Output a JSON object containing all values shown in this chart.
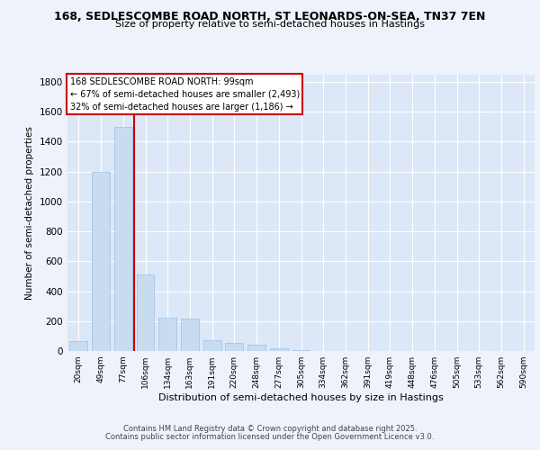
{
  "title1": "168, SEDLESCOMBE ROAD NORTH, ST LEONARDS-ON-SEA, TN37 7EN",
  "title2": "Size of property relative to semi-detached houses in Hastings",
  "xlabel": "Distribution of semi-detached houses by size in Hastings",
  "ylabel": "Number of semi-detached properties",
  "categories": [
    "20sqm",
    "49sqm",
    "77sqm",
    "106sqm",
    "134sqm",
    "163sqm",
    "191sqm",
    "220sqm",
    "248sqm",
    "277sqm",
    "305sqm",
    "334sqm",
    "362sqm",
    "391sqm",
    "419sqm",
    "448sqm",
    "476sqm",
    "505sqm",
    "533sqm",
    "562sqm",
    "590sqm"
  ],
  "values": [
    65,
    1200,
    1500,
    510,
    220,
    215,
    75,
    55,
    40,
    20,
    5,
    3,
    1,
    1,
    0,
    0,
    0,
    0,
    0,
    0,
    0
  ],
  "bar_color": "#c8dcf0",
  "bar_edgecolor": "#9fbfdf",
  "vline_color": "#cc0000",
  "vline_pos": 2.5,
  "annotation_title": "168 SEDLESCOMBE ROAD NORTH: 99sqm",
  "annotation_line1": "← 67% of semi-detached houses are smaller (2,493)",
  "annotation_line2": "32% of semi-detached houses are larger (1,186) →",
  "annotation_box_edgecolor": "#cc0000",
  "ylim": [
    0,
    1850
  ],
  "yticks": [
    0,
    200,
    400,
    600,
    800,
    1000,
    1200,
    1400,
    1600,
    1800
  ],
  "background_color": "#eef2fa",
  "plot_bg_color": "#dce8f8",
  "footer1": "Contains HM Land Registry data © Crown copyright and database right 2025.",
  "footer2": "Contains public sector information licensed under the Open Government Licence v3.0."
}
